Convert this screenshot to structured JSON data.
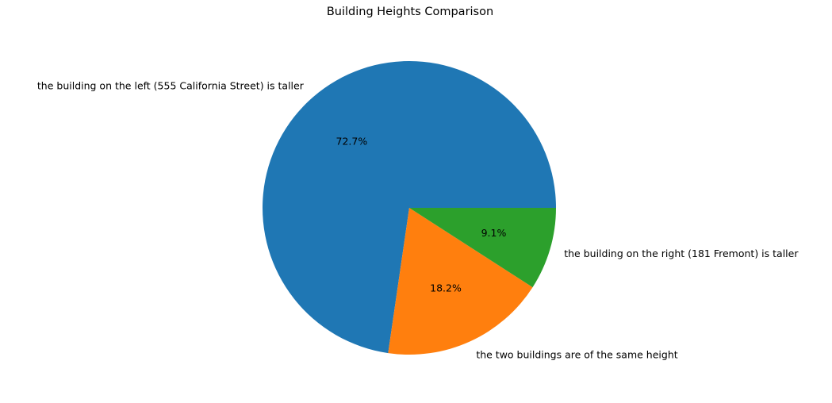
{
  "chart_data": {
    "type": "pie",
    "title": "Building Heights Comparison",
    "slices": [
      {
        "label": "the building on the left (555 California Street) is taller",
        "value": 72.7,
        "pct_label": "72.7%",
        "color": "#1f77b4"
      },
      {
        "label": "the two buildings are of the same height",
        "value": 18.2,
        "pct_label": "18.2%",
        "color": "#ff7f0e"
      },
      {
        "label": "the building on the right (181 Fremont) is taller",
        "value": 9.1,
        "pct_label": "9.1%",
        "color": "#2ca02c"
      }
    ],
    "start_angle": 0,
    "direction": "counterclockwise"
  }
}
